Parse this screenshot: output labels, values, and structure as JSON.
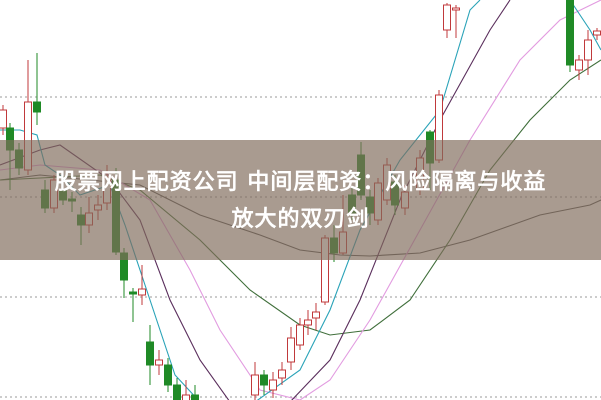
{
  "headline": {
    "line1": "股票网上配资公司 中间层配资：风险隔离与收益",
    "line2": "放大的双刃剑"
  },
  "colors": {
    "candle_up": "#c0393b",
    "candle_down": "#1f8a26",
    "ma_short": "#2aa3b8",
    "ma_mid": "#5a2e5c",
    "ma_long": "#e29be0",
    "ma_trend": "#3f6e3a",
    "ma_slow": "#555555",
    "overlay_band": "#a69689"
  }
}
